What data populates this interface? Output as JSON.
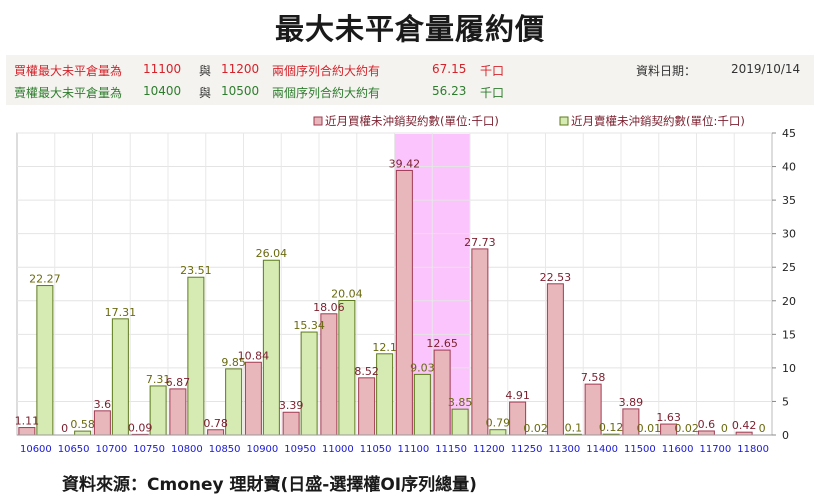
{
  "header": {
    "title": "最大未平倉量履約價",
    "call_row": {
      "label": "買權最大未平倉量為",
      "strike1": "11100",
      "sep": "與",
      "strike2": "11200",
      "desc": "兩個序列合約大約有",
      "value": "67.15",
      "unit": "千口"
    },
    "put_row": {
      "label": "賣權最大未平倉量為",
      "strike1": "10400",
      "sep": "與",
      "strike2": "10500",
      "desc": "兩個序列合約大約有",
      "value": "56.23",
      "unit": "千口"
    },
    "date_label": "資料日期：",
    "date_value": "2019/10/14"
  },
  "source": "資料來源：Cmoney 理財寶(日盛-選擇權OI序列總量)",
  "colors": {
    "call_bar": "#e8b7bb",
    "call_edge": "#a03a52",
    "put_bar": "#d6ebb3",
    "put_edge": "#5e7a1e",
    "highlight": "#fcc4fc",
    "axis_text": "#1a1ad6"
  },
  "chart_data": {
    "type": "bar",
    "title": "",
    "xlabel": "",
    "ylabel": "",
    "ylim": [
      0,
      45
    ],
    "yticks": [
      0,
      5,
      10,
      15,
      20,
      25,
      30,
      35,
      40,
      45
    ],
    "highlight_range": [
      "11100",
      "11150"
    ],
    "categories": [
      "10600",
      "10650",
      "10700",
      "10750",
      "10800",
      "10850",
      "10900",
      "10950",
      "11000",
      "11050",
      "11100",
      "11150",
      "11200",
      "11250",
      "11300",
      "11400",
      "11500",
      "11600",
      "11700",
      "11800"
    ],
    "series": [
      {
        "name": "近月買權未沖銷契約數(單位:千口)",
        "values": [
          1.11,
          0,
          3.6,
          0.09,
          6.87,
          0.78,
          10.84,
          3.39,
          18.06,
          8.52,
          39.42,
          12.65,
          27.73,
          4.91,
          22.53,
          7.58,
          3.89,
          1.63,
          0.6,
          0.42
        ],
        "labels": [
          "1.11",
          "0",
          "3.6",
          "0.09",
          "6.87",
          "0.78",
          "10.84",
          "3.39",
          "18.06",
          "8.52",
          "39.42",
          "12.65",
          "27.73",
          "4.91",
          "22.53",
          "7.58",
          "3.89",
          "1.63",
          "0.6",
          "0.42"
        ]
      },
      {
        "name": "近月賣權未沖銷契約數(單位:千口)",
        "values": [
          22.27,
          0.58,
          17.31,
          7.31,
          23.51,
          9.85,
          26.04,
          15.34,
          20.04,
          12.1,
          9.03,
          3.85,
          0.79,
          0.02,
          0.1,
          0.12,
          0.01,
          0.02,
          0,
          0
        ],
        "labels": [
          "22.27",
          "0.58",
          "17.31",
          "7.31",
          "23.51",
          "9.85",
          "26.04",
          "15.34",
          "20.04",
          "12.1",
          "9.03",
          "3.85",
          "0.79",
          "0.02",
          "0.1",
          "0.12",
          "0.01",
          "0.02",
          "0",
          "0"
        ]
      }
    ]
  }
}
